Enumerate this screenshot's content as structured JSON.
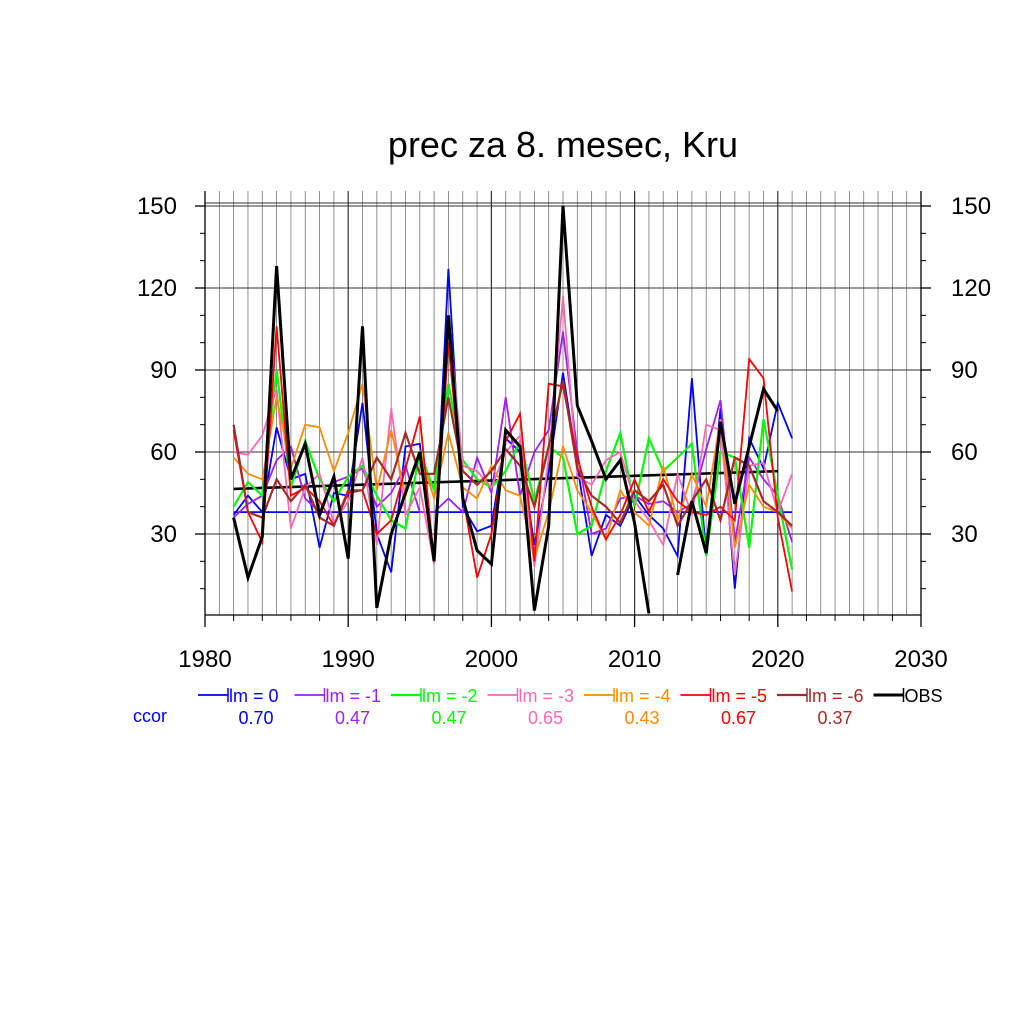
{
  "chart_data": {
    "type": "line",
    "title": "prec za 8. mesec, Kru",
    "xlabel": "",
    "ylabel": "",
    "xlim": [
      1980,
      2030
    ],
    "ylim": [
      0,
      155
    ],
    "xticks": [
      1980,
      1990,
      2000,
      2010,
      2020,
      2030
    ],
    "yticks": [
      30,
      60,
      90,
      120,
      150
    ],
    "grid": true,
    "legend_position": "bottom",
    "ccor_label": "ccor",
    "x": [
      1982,
      1983,
      1984,
      1985,
      1986,
      1987,
      1988,
      1989,
      1990,
      1991,
      1992,
      1993,
      1994,
      1995,
      1996,
      1997,
      1998,
      1999,
      2000,
      2001,
      2002,
      2003,
      2004,
      2005,
      2006,
      2007,
      2008,
      2009,
      2010,
      2011,
      2012,
      2013,
      2014,
      2015,
      2016,
      2017,
      2018,
      2019,
      2020,
      2021
    ],
    "series": [
      {
        "name": "lm = 0",
        "ccor": "0.70",
        "color": "#0000ff",
        "width": 1.8,
        "values": [
          37,
          44,
          38,
          69,
          50,
          52,
          25,
          45,
          44,
          78,
          30,
          16,
          62,
          63,
          20,
          127,
          40,
          31,
          33,
          65,
          60,
          26,
          53,
          89,
          55,
          22,
          37,
          33,
          44,
          37,
          32,
          22,
          87,
          22,
          76,
          10,
          65,
          54,
          78,
          65
        ]
      },
      {
        "name": "lm = -1",
        "ccor": "0.47",
        "color": "#a020f0",
        "width": 1.8,
        "values": [
          36,
          41,
          44,
          57,
          62,
          43,
          38,
          49,
          51,
          54,
          40,
          45,
          55,
          38,
          38,
          43,
          38,
          58,
          45,
          80,
          44,
          60,
          68,
          104,
          60,
          30,
          32,
          43,
          44,
          41,
          42,
          38,
          41,
          61,
          79,
          27,
          58,
          50,
          44,
          27
        ]
      },
      {
        "name": "lm = -2",
        "ccor": "0.47",
        "color": "#00ff00",
        "width": 2.2,
        "values": [
          40,
          49,
          44,
          90,
          47,
          64,
          50,
          42,
          51,
          55,
          44,
          35,
          32,
          60,
          46,
          85,
          57,
          50,
          47,
          53,
          64,
          42,
          62,
          58,
          30,
          33,
          53,
          67,
          40,
          65,
          53,
          58,
          63,
          22,
          60,
          58,
          25,
          72,
          44,
          17
        ]
      },
      {
        "name": "lm = -3",
        "ccor": "0.65",
        "color": "#ff69b4",
        "width": 1.8,
        "values": [
          60,
          59,
          66,
          83,
          32,
          47,
          52,
          34,
          42,
          58,
          26,
          76,
          37,
          47,
          19,
          110,
          55,
          53,
          47,
          60,
          66,
          18,
          58,
          117,
          51,
          48,
          57,
          60,
          42,
          35,
          26,
          52,
          37,
          70,
          68,
          15,
          55,
          56,
          38,
          52
        ]
      },
      {
        "name": "lm = -4",
        "ccor": "0.43",
        "color": "#ff8c00",
        "width": 1.8,
        "values": [
          58,
          52,
          50,
          80,
          54,
          70,
          69,
          53,
          67,
          85,
          46,
          68,
          44,
          60,
          43,
          67,
          47,
          43,
          55,
          46,
          44,
          21,
          38,
          62,
          46,
          38,
          28,
          46,
          38,
          33,
          55,
          35,
          52,
          40,
          72,
          25,
          48,
          40,
          38,
          32
        ]
      },
      {
        "name": "lm = -5",
        "ccor": "0.67",
        "color": "#ff0000",
        "width": 1.8,
        "values": [
          68,
          38,
          27,
          106,
          44,
          47,
          42,
          33,
          45,
          46,
          30,
          35,
          54,
          73,
          20,
          100,
          44,
          14,
          30,
          64,
          74,
          20,
          85,
          84,
          58,
          40,
          28,
          37,
          50,
          38,
          50,
          42,
          38,
          37,
          40,
          35,
          94,
          87,
          36,
          9
        ]
      },
      {
        "name": "lm = -6",
        "ccor": "0.37",
        "color": "#a52a2a",
        "width": 2.2,
        "values": [
          70,
          38,
          36,
          50,
          42,
          48,
          36,
          33,
          46,
          46,
          58,
          50,
          67,
          52,
          52,
          80,
          53,
          48,
          53,
          61,
          55,
          40,
          62,
          86,
          54,
          44,
          40,
          34,
          46,
          42,
          48,
          33,
          42,
          50,
          35,
          58,
          55,
          42,
          38,
          33
        ]
      },
      {
        "name": "OBS",
        "ccor": "",
        "color": "#000000",
        "width": 3.0,
        "values": [
          36,
          14,
          29,
          128,
          50,
          63,
          37,
          51,
          21,
          106,
          3,
          30,
          45,
          60,
          20,
          110,
          43,
          24,
          19,
          68,
          62,
          2,
          33,
          150,
          77,
          64,
          50,
          57,
          34,
          1,
          null,
          15,
          42,
          23,
          71,
          41,
          62,
          83,
          75,
          null
        ]
      }
    ],
    "reference_lines": [
      {
        "label": "lm = 0 constant",
        "color": "#0000ff",
        "x": [
          1982,
          2021
        ],
        "y": [
          38,
          38
        ],
        "width": 1.8
      },
      {
        "label": "OBS trend",
        "color": "#000000",
        "x": [
          1982,
          2020
        ],
        "y": [
          46.5,
          53
        ],
        "width": 2.6
      }
    ]
  }
}
